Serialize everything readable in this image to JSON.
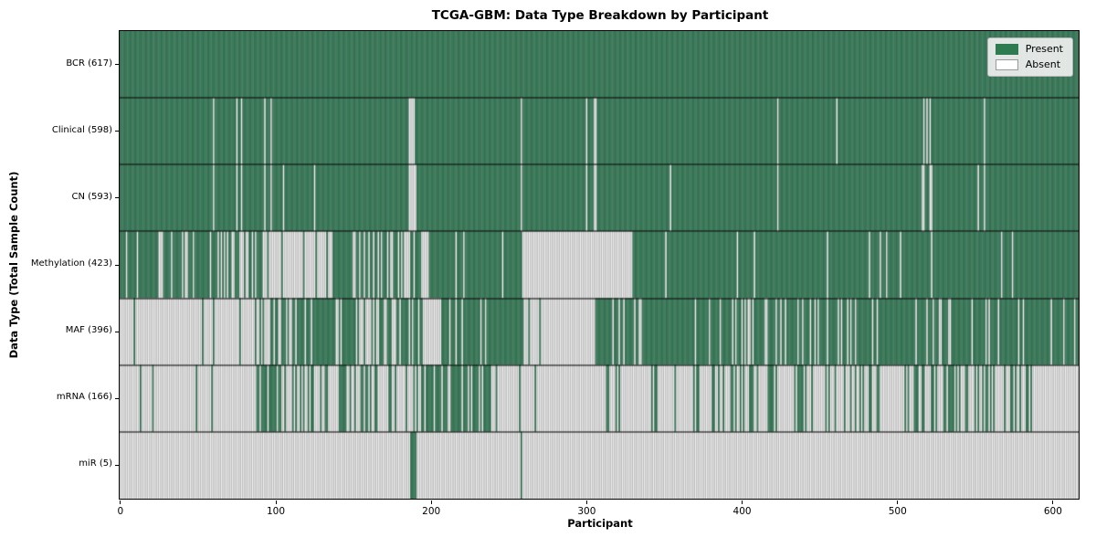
{
  "figure": {
    "title": "TCGA-GBM: Data Type Breakdown by Participant",
    "xlabel": "Participant",
    "ylabel": "Data Type (Total Sample Count)"
  },
  "legend": {
    "items": [
      {
        "label": "Present",
        "color": "#2e7b52",
        "edge": "#2e7b52"
      },
      {
        "label": "Absent",
        "color": "#ffffff",
        "edge": "#9a9a9a"
      }
    ]
  },
  "chart_data": {
    "type": "heatmap",
    "title": "TCGA-GBM: Data Type Breakdown by Participant",
    "xlabel": "Participant",
    "ylabel": "Data Type (Total Sample Count)",
    "legend_entries": [
      "Present",
      "Absent"
    ],
    "legend_position": "upper right",
    "grid": false,
    "n_participants": 617,
    "xlim": [
      0,
      617
    ],
    "x_ticks": [
      0,
      100,
      200,
      300,
      400,
      500,
      600
    ],
    "colors": {
      "present_fill": "#3c8c63",
      "present_edge": "#224f39",
      "absent_fill": "#ffffff",
      "absent_edge": "#9a9a9a",
      "row_divider": "#000000",
      "spine": "#000000"
    },
    "rows": [
      {
        "label": "BCR (617)",
        "data_type": "BCR",
        "present_count": 617,
        "pattern": {
          "mode": "all_present"
        }
      },
      {
        "label": "Clinical (598)",
        "data_type": "Clinical",
        "present_count": 598,
        "pattern": {
          "mode": "absent_list",
          "absent": [
            60,
            75,
            78,
            93,
            97,
            186,
            187,
            188,
            189,
            258,
            300,
            305,
            306,
            423,
            461,
            517,
            519,
            521,
            556
          ]
        }
      },
      {
        "label": "CN (593)",
        "data_type": "CN",
        "present_count": 593,
        "pattern": {
          "mode": "absent_list",
          "absent": [
            60,
            75,
            78,
            93,
            97,
            105,
            125,
            186,
            187,
            188,
            189,
            190,
            258,
            300,
            305,
            306,
            354,
            423,
            516,
            517,
            521,
            522,
            552,
            556
          ]
        }
      },
      {
        "label": "Methylation (423)",
        "data_type": "Methylation",
        "present_count": 423,
        "pattern": {
          "mode": "segments",
          "seed": 11,
          "segments": [
            [
              0,
              58,
              0.76
            ],
            [
              58,
              90,
              0.5
            ],
            [
              90,
              137,
              0.13
            ],
            [
              137,
              150,
              1
            ],
            [
              150,
              199,
              0.45
            ],
            [
              199,
              259,
              0.97
            ],
            [
              259,
              330,
              0
            ],
            [
              330,
              617,
              0.94
            ]
          ]
        }
      },
      {
        "label": "MAF (396)",
        "data_type": "MAF",
        "present_count": 396,
        "pattern": {
          "mode": "segments",
          "seed": 23,
          "segments": [
            [
              0,
              90,
              0.04
            ],
            [
              90,
              195,
              0.63
            ],
            [
              195,
              207,
              0.05
            ],
            [
              207,
              260,
              0.92
            ],
            [
              260,
              306,
              0.02
            ],
            [
              306,
              617,
              0.87
            ]
          ]
        }
      },
      {
        "label": "mRNA (166)",
        "data_type": "mRNA",
        "present_count": 166,
        "pattern": {
          "mode": "segments",
          "seed": 5,
          "segments": [
            [
              0,
              88,
              0.03
            ],
            [
              88,
              103,
              0.8
            ],
            [
              103,
              195,
              0.3
            ],
            [
              195,
              240,
              0.75
            ],
            [
              240,
              307,
              0.04
            ],
            [
              307,
              370,
              0.2
            ],
            [
              370,
              460,
              0.3
            ],
            [
              460,
              560,
              0.4
            ],
            [
              560,
              590,
              0.3
            ],
            [
              590,
              617,
              0.05
            ]
          ]
        }
      },
      {
        "label": "miR (5)",
        "data_type": "miR",
        "present_count": 5,
        "pattern": {
          "mode": "present_list",
          "present": [
            187,
            188,
            189,
            190,
            258
          ]
        }
      }
    ]
  }
}
